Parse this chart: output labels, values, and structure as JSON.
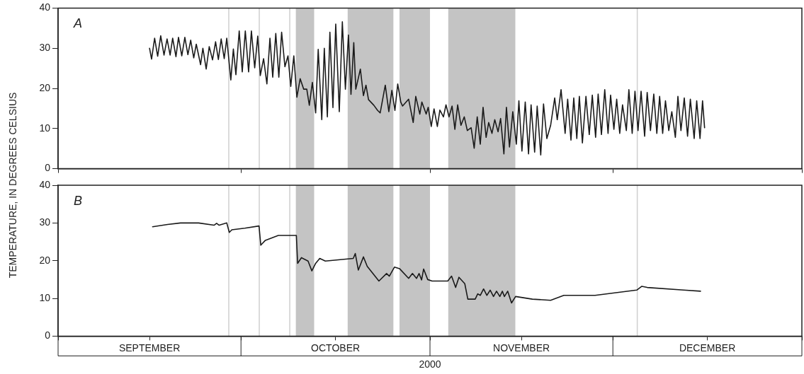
{
  "chart_data": [
    {
      "type": "line",
      "ylabel": "TEMPERATURE, IN DEGREES CELSIUS",
      "annotations": [
        "A"
      ],
      "xlim": [
        "2000-09-01",
        "2001-01-01"
      ],
      "xticks": [
        {
          "value": "2000-09-01",
          "label": null
        },
        {
          "value": "2000-10-01",
          "label": null
        },
        {
          "value": "2000-11-01",
          "label": null
        },
        {
          "value": "2000-12-01",
          "label": null
        },
        {
          "value": "2001-01-01",
          "label": null
        }
      ],
      "ylim": [
        0,
        40
      ],
      "yticks": [
        0,
        10,
        20,
        30,
        40
      ],
      "tick_labels": "y",
      "grid": false,
      "legend": false,
      "marker": "none",
      "line_style": "solid",
      "bands": [
        {
          "axis": "x",
          "from": "2000-10-10",
          "to": "2000-10-13",
          "color": "#c4c4c4"
        },
        {
          "axis": "x",
          "from": "2000-10-18T12:00",
          "to": "2000-10-26",
          "color": "#c4c4c4"
        },
        {
          "axis": "x",
          "from": "2000-10-27",
          "to": "2000-11-01",
          "color": "#c4c4c4"
        },
        {
          "axis": "x",
          "from": "2000-11-04",
          "to": "2000-11-15",
          "color": "#c4c4c4"
        }
      ],
      "ref_lines": [
        {
          "axis": "x",
          "value": "2000-09-29",
          "color": "#cfcfcf"
        },
        {
          "axis": "x",
          "value": "2000-10-04",
          "color": "#cfcfcf"
        },
        {
          "axis": "x",
          "value": "2000-10-09",
          "color": "#cfcfcf"
        },
        {
          "axis": "x",
          "value": "2000-12-05",
          "color": "#cfcfcf"
        }
      ],
      "series": [
        {
          "color": "#1a1a1a",
          "x": [
            "2000-09-16T00:00",
            "2000-09-16T08:00",
            "2000-09-16T20:00",
            "2000-09-17T08:00",
            "2000-09-17T20:00",
            "2000-09-18T09:00",
            "2000-09-18T21:00",
            "2000-09-19T09:00",
            "2000-09-19T19:00",
            "2000-09-20T08:00",
            "2000-09-20T18:00",
            "2000-09-21T07:00",
            "2000-09-21T19:00",
            "2000-09-22T07:00",
            "2000-09-22T18:00",
            "2000-09-23T06:00",
            "2000-09-23T16:00",
            "2000-09-24T09:00",
            "2000-09-24T18:00",
            "2000-09-25T07:00",
            "2000-09-25T19:00",
            "2000-09-26T08:00",
            "2000-09-26T20:00",
            "2000-09-27T07:00",
            "2000-09-27T18:00",
            "2000-09-28T06:00",
            "2000-09-28T16:00",
            "2000-09-29T08:00",
            "2000-09-29T18:00",
            "2000-09-30T04:00",
            "2000-09-30T17:00",
            "2000-10-01T05:00",
            "2000-10-01T17:00",
            "2000-10-02T06:00",
            "2000-10-02T17:00",
            "2000-10-03T06:00",
            "2000-10-03T18:00",
            "2000-10-04T04:00",
            "2000-10-04T17:00",
            "2000-10-05T06:00",
            "2000-10-05T18:00",
            "2000-10-06T05:00",
            "2000-10-06T17:00",
            "2000-10-07T05:00",
            "2000-10-07T16:00",
            "2000-10-08T05:00",
            "2000-10-08T17:00",
            "2000-10-09T04:00",
            "2000-10-09T16:00",
            "2000-10-10T04:00",
            "2000-10-10T17:00",
            "2000-10-11T07:00",
            "2000-10-11T19:00",
            "2000-10-12T05:00",
            "2000-10-12T17:00",
            "2000-10-13T06:00",
            "2000-10-13T16:00",
            "2000-10-14T06:00",
            "2000-10-14T16:00",
            "2000-10-15T04:00",
            "2000-10-15T14:00",
            "2000-10-16T02:00",
            "2000-10-16T13:00",
            "2000-10-17T03:00",
            "2000-10-17T15:00",
            "2000-10-18T03:00",
            "2000-10-18T15:00",
            "2000-10-19T01:00",
            "2000-10-19T12:00",
            "2000-10-19T20:00",
            "2000-10-20T14:00",
            "2000-10-21T02:00",
            "2000-10-21T12:00",
            "2000-10-21T22:00",
            "2000-10-22T19:00",
            "2000-10-23T10:00",
            "2000-10-23T20:00",
            "2000-10-24T16:00",
            "2000-10-25T06:00",
            "2000-10-25T18:00",
            "2000-10-26T06:00",
            "2000-10-26T17:00",
            "2000-10-27T05:00",
            "2000-10-27T12:00",
            "2000-10-28T12:00",
            "2000-10-29T06:00",
            "2000-10-29T16:00",
            "2000-10-30T08:00",
            "2000-10-30T16:00",
            "2000-10-31T09:00",
            "2000-10-31T17:00",
            "2000-11-01T05:00",
            "2000-11-01T16:00",
            "2000-11-02T05:00",
            "2000-11-02T15:00",
            "2000-11-03T05:00",
            "2000-11-03T15:00",
            "2000-11-04T03:00",
            "2000-11-04T15:00",
            "2000-11-05T02:00",
            "2000-11-05T13:00",
            "2000-11-06T02:00",
            "2000-11-06T15:00",
            "2000-11-07T03:00",
            "2000-11-07T18:00",
            "2000-11-08T06:00",
            "2000-11-08T18:00",
            "2000-11-09T06:00",
            "2000-11-09T17:00",
            "2000-11-10T05:00",
            "2000-11-10T15:00",
            "2000-11-11T04:00",
            "2000-11-11T15:00",
            "2000-11-12T04:00",
            "2000-11-12T14:00",
            "2000-11-13T03:00",
            "2000-11-13T13:00",
            "2000-11-14T01:00",
            "2000-11-14T14:00",
            "2000-11-15T04:00",
            "2000-11-15T14:00",
            "2000-11-16T02:00",
            "2000-11-16T15:00",
            "2000-11-17T04:00",
            "2000-11-17T14:00",
            "2000-11-18T04:00",
            "2000-11-18T14:00",
            "2000-11-19T04:00",
            "2000-11-19T15:00",
            "2000-11-20T04:00",
            "2000-11-20T19:00",
            "2000-11-21T11:00",
            "2000-11-21T21:00",
            "2000-11-22T12:00",
            "2000-11-23T04:00",
            "2000-11-23T14:00",
            "2000-11-24T03:00",
            "2000-11-24T14:00",
            "2000-11-25T02:00",
            "2000-11-25T12:00",
            "2000-11-26T00:00",
            "2000-11-26T14:00",
            "2000-11-27T03:00",
            "2000-11-27T15:00",
            "2000-11-28T04:00",
            "2000-11-28T14:00",
            "2000-11-29T03:00",
            "2000-11-29T16:00",
            "2000-11-30T05:00",
            "2000-11-30T15:00",
            "2000-12-01T04:00",
            "2000-12-01T15:00",
            "2000-12-02T03:00",
            "2000-12-02T14:00",
            "2000-12-03T05:00",
            "2000-12-03T15:00",
            "2000-12-04T04:00",
            "2000-12-04T15:00",
            "2000-12-05T03:00",
            "2000-12-05T15:00",
            "2000-12-06T05:00",
            "2000-12-06T15:00",
            "2000-12-07T04:00",
            "2000-12-07T17:00",
            "2000-12-08T05:00",
            "2000-12-08T16:00",
            "2000-12-09T04:00",
            "2000-12-09T15:00",
            "2000-12-10T04:00",
            "2000-12-10T16:00",
            "2000-12-11T06:00",
            "2000-12-11T16:00",
            "2000-12-12T04:00",
            "2000-12-12T17:00",
            "2000-12-13T06:00",
            "2000-12-13T17:00",
            "2000-12-14T08:00",
            "2000-12-14T18:00",
            "2000-12-15T07:00",
            "2000-12-15T17:00",
            "2000-12-16T01:00"
          ],
          "values": [
            30.0,
            27.3,
            32.5,
            28.0,
            33.1,
            28.3,
            32.3,
            28.3,
            32.5,
            27.9,
            32.7,
            28.1,
            32.7,
            28.4,
            32.0,
            27.6,
            31.0,
            25.9,
            30.0,
            24.8,
            30.4,
            27.1,
            31.6,
            27.2,
            32.3,
            27.4,
            32.5,
            22.1,
            29.8,
            23.4,
            34.3,
            24.1,
            34.3,
            24.1,
            34.3,
            25.1,
            33.0,
            23.2,
            27.4,
            21.1,
            32.5,
            22.8,
            33.7,
            22.8,
            34.0,
            25.4,
            28.1,
            20.5,
            28.1,
            17.8,
            22.4,
            19.8,
            19.8,
            15.8,
            21.5,
            13.9,
            29.7,
            12.2,
            30.0,
            12.9,
            34.0,
            15.2,
            36.0,
            14.2,
            36.6,
            19.8,
            33.3,
            18.5,
            31.4,
            19.8,
            24.8,
            18.2,
            20.8,
            17.2,
            15.8,
            14.5,
            13.9,
            20.8,
            14.2,
            19.5,
            14.5,
            21.1,
            16.6,
            15.6,
            17.3,
            11.5,
            18.0,
            13.6,
            16.6,
            13.6,
            15.3,
            10.5,
            14.9,
            10.5,
            14.6,
            12.9,
            15.9,
            12.9,
            15.6,
            9.8,
            15.9,
            10.8,
            12.9,
            9.5,
            10.2,
            5.1,
            12.9,
            6.1,
            15.3,
            7.8,
            11.5,
            8.8,
            12.2,
            9.2,
            12.5,
            3.7,
            15.3,
            5.4,
            14.2,
            6.1,
            16.9,
            4.4,
            16.6,
            3.7,
            15.9,
            4.1,
            15.6,
            3.4,
            16.1,
            7.5,
            10.8,
            17.6,
            12.2,
            19.7,
            8.8,
            17.3,
            7.1,
            17.6,
            7.5,
            18.0,
            6.4,
            18.0,
            8.5,
            18.3,
            7.8,
            18.6,
            8.5,
            19.7,
            8.8,
            18.3,
            9.8,
            17.3,
            8.8,
            15.9,
            9.5,
            19.7,
            8.8,
            19.3,
            9.5,
            19.3,
            8.1,
            19.0,
            9.5,
            18.6,
            8.8,
            18.0,
            8.8,
            16.9,
            9.5,
            14.2,
            7.8,
            18.0,
            9.5,
            17.6,
            8.1,
            17.3,
            7.5,
            16.9,
            7.5,
            16.9,
            10.2
          ]
        }
      ]
    },
    {
      "type": "line",
      "xlabel": "2000",
      "annotations": [
        "B"
      ],
      "xlim": [
        "2000-09-01",
        "2001-01-01"
      ],
      "xticks": [
        {
          "value": "2000-09-01",
          "label": null
        },
        {
          "value": "2000-09-16",
          "label": "SEPTEMBER"
        },
        {
          "value": "2000-10-01",
          "label": null
        },
        {
          "value": "2000-10-16T12:00",
          "label": "OCTOBER"
        },
        {
          "value": "2000-11-01",
          "label": null
        },
        {
          "value": "2000-11-16",
          "label": "NOVEMBER"
        },
        {
          "value": "2000-12-01",
          "label": null
        },
        {
          "value": "2000-12-16T12:00",
          "label": "DECEMBER"
        },
        {
          "value": "2001-01-01",
          "label": null
        }
      ],
      "ylim": [
        0,
        40
      ],
      "yticks": [
        0,
        10,
        20,
        30,
        40
      ],
      "grid": false,
      "legend": false,
      "marker": "none",
      "line_style": "solid",
      "bands": [
        {
          "axis": "x",
          "from": "2000-10-10",
          "to": "2000-10-13",
          "color": "#c4c4c4"
        },
        {
          "axis": "x",
          "from": "2000-10-18T12:00",
          "to": "2000-10-26",
          "color": "#c4c4c4"
        },
        {
          "axis": "x",
          "from": "2000-10-27",
          "to": "2000-11-01",
          "color": "#c4c4c4"
        },
        {
          "axis": "x",
          "from": "2000-11-04",
          "to": "2000-11-15",
          "color": "#c4c4c4"
        }
      ],
      "ref_lines": [
        {
          "axis": "x",
          "value": "2000-09-29",
          "color": "#cfcfcf"
        },
        {
          "axis": "x",
          "value": "2000-10-04",
          "color": "#cfcfcf"
        },
        {
          "axis": "x",
          "value": "2000-10-09",
          "color": "#cfcfcf"
        },
        {
          "axis": "x",
          "value": "2000-12-05",
          "color": "#cfcfcf"
        }
      ],
      "series": [
        {
          "color": "#1a1a1a",
          "x": [
            "2000-09-16T12:00",
            "2000-09-18T23:00",
            "2000-09-21T02:00",
            "2000-09-24T01:00",
            "2000-09-26T14:00",
            "2000-09-27T00:00",
            "2000-09-27T10:00",
            "2000-09-28T16:00",
            "2000-09-29T02:00",
            "2000-09-29T12:00",
            "2000-10-01T15:00",
            "2000-10-03T23:00",
            "2000-10-04T06:00",
            "2000-10-05T00:00",
            "2000-10-07T03:00",
            "2000-10-10T02:00",
            "2000-10-10T07:00",
            "2000-10-10T22:00",
            "2000-10-12T00:00",
            "2000-10-12T15:00",
            "2000-10-13T06:00",
            "2000-10-13T22:00",
            "2000-10-14T20:00",
            "2000-10-19T10:00",
            "2000-10-19T18:00",
            "2000-10-20T06:00",
            "2000-10-21T02:00",
            "2000-10-21T17:00",
            "2000-10-23T15:00",
            "2000-10-24T21:00",
            "2000-10-25T08:00",
            "2000-10-26T04:00",
            "2000-10-27T00:00",
            "2000-10-28T12:00",
            "2000-10-29T03:00",
            "2000-10-29T19:00",
            "2000-10-30T05:00",
            "2000-10-30T15:00",
            "2000-10-30T23:00",
            "2000-10-31T15:00",
            "2000-11-01T08:00",
            "2000-11-03T22:00",
            "2000-11-04T13:00",
            "2000-11-05T05:00",
            "2000-11-05T18:00",
            "2000-11-06T17:00",
            "2000-11-07T05:00",
            "2000-11-08T10:00",
            "2000-11-08T20:00",
            "2000-11-09T06:00",
            "2000-11-09T19:00",
            "2000-11-10T08:00",
            "2000-11-10T21:00",
            "2000-11-11T10:00",
            "2000-11-11T22:00",
            "2000-11-12T11:00",
            "2000-11-12T21:00",
            "2000-11-13T05:00",
            "2000-11-13T18:00",
            "2000-11-14T09:00",
            "2000-11-15T01:00",
            "2000-11-17T19:00",
            "2000-11-20T19:00",
            "2000-11-22T23:00",
            "2000-11-28T02:00",
            "2000-12-04T22:00",
            "2000-12-05T18:00",
            "2000-12-06T15:00",
            "2000-12-12T14:00",
            "2000-12-15T09:00"
          ],
          "values": [
            29.0,
            29.6,
            30.0,
            30.0,
            29.4,
            29.9,
            29.4,
            30.0,
            27.5,
            28.2,
            28.6,
            29.2,
            24.1,
            25.4,
            26.7,
            26.7,
            19.3,
            20.8,
            19.9,
            17.3,
            19.3,
            20.6,
            19.9,
            20.6,
            21.9,
            17.5,
            21.0,
            18.5,
            14.6,
            16.6,
            15.9,
            18.3,
            17.9,
            15.3,
            16.6,
            15.3,
            16.6,
            14.9,
            17.8,
            15.0,
            14.6,
            14.6,
            15.9,
            12.9,
            15.6,
            13.9,
            9.8,
            9.8,
            11.2,
            10.8,
            12.5,
            10.8,
            12.2,
            10.5,
            11.9,
            10.5,
            11.9,
            10.5,
            11.9,
            8.8,
            10.5,
            9.8,
            9.5,
            10.8,
            10.8,
            12.2,
            13.2,
            12.9,
            12.2,
            11.9
          ]
        }
      ]
    }
  ]
}
